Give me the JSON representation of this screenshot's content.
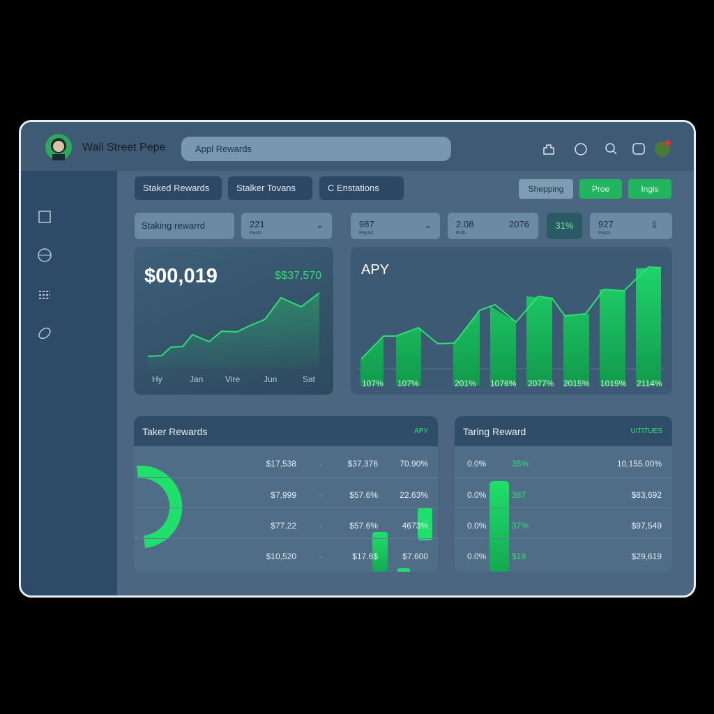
{
  "header": {
    "brand": "Wall Street Pepe",
    "search": "Appl Rewards"
  },
  "tabs": [
    "Staked Rewards",
    "Stalker Tovans",
    "C Enstations"
  ],
  "buttons": [
    "Shepping",
    "Proe",
    "Ingis"
  ],
  "filters": {
    "label": "Staking rewarrd",
    "boxes": [
      {
        "value": "221",
        "sub": "Pasts"
      },
      {
        "value": "987",
        "sub": "Pepsd"
      },
      {
        "value": "2.08",
        "sub": "Polh",
        "extra": "2076"
      },
      {
        "value": "31%"
      },
      {
        "value": "927",
        "sub": "Pasts"
      }
    ]
  },
  "balance_card": {
    "amount": "$00,019",
    "change": "$$37,570",
    "labels": [
      "Hy",
      "Jan",
      "Vire",
      "Jun",
      "Sat"
    ]
  },
  "apy_card": {
    "title": "APY",
    "labels": [
      "107%",
      "107%",
      "201%",
      "1076%",
      "2077%",
      "2015%",
      "1019%",
      "2114%"
    ]
  },
  "taker_table": {
    "title": "Taker Rewards",
    "tag": "APY",
    "rows": [
      [
        "$17,538",
        "-",
        "$37,376",
        "70.90%"
      ],
      [
        "$7,999",
        "-",
        "$57.6%",
        "22.63%"
      ],
      [
        "$77.22",
        "-",
        "$57.6%",
        "4673%"
      ],
      [
        "$10,520",
        "-",
        "$17.6$",
        "$7.600"
      ]
    ]
  },
  "taring_table": {
    "title": "Taring Reward",
    "tag": "UITITUES",
    "rows": [
      [
        "0.0%",
        "35%",
        "10,155.00%"
      ],
      [
        "0.0%",
        "387",
        "$83,692"
      ],
      [
        "0.0%",
        "37%",
        "$97,549"
      ],
      [
        "0.0%",
        "$19",
        "$29,619"
      ]
    ]
  }
}
